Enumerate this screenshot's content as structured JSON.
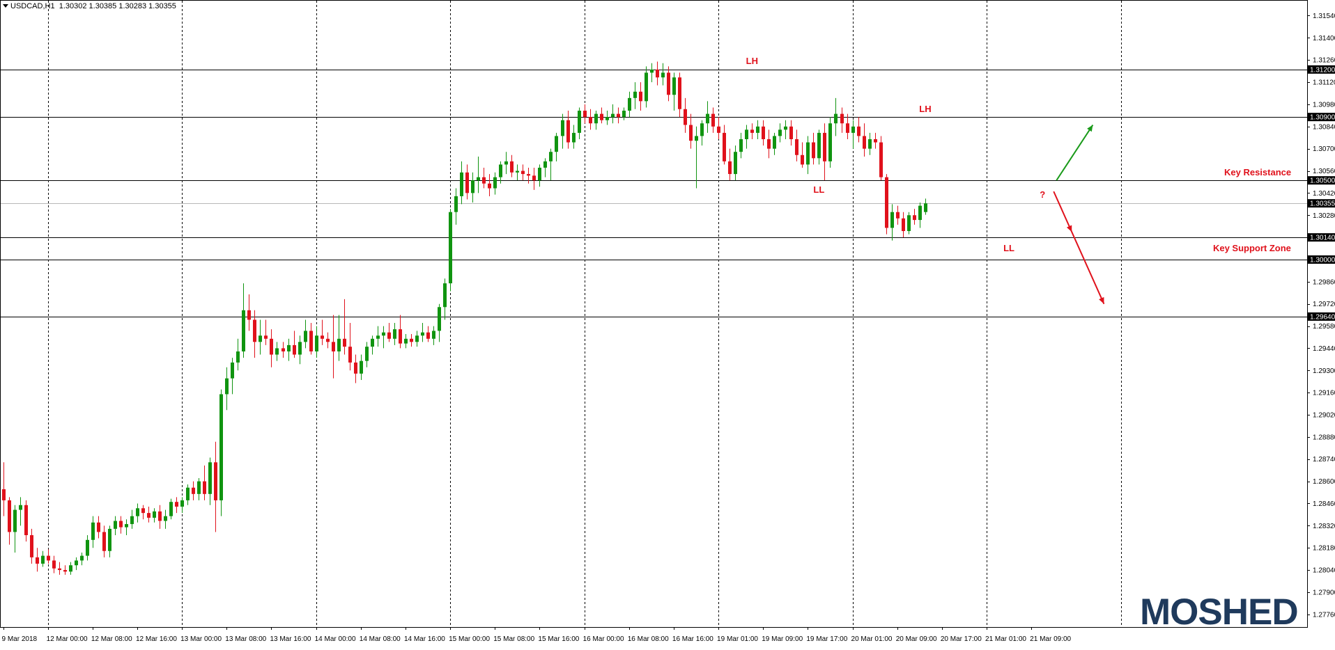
{
  "header": {
    "symbol": "USDCAD,H1",
    "ohlc": "1.30302 1.30385 1.30283 1.30355"
  },
  "logo": {
    "text": "MOSHED"
  },
  "chart_data": {
    "type": "candlestick",
    "symbol": "USDCAD",
    "timeframe": "H1",
    "ylim": [
      1.2768,
      1.3163
    ],
    "y_ticks": [
      "1.27760",
      "1.27900",
      "1.28040",
      "1.28180",
      "1.28320",
      "1.28460",
      "1.28600",
      "1.28740",
      "1.28880",
      "1.29020",
      "1.29160",
      "1.29300",
      "1.29440",
      "1.29580",
      "1.29720",
      "1.29860",
      "1.30000",
      "1.30140",
      "1.30280",
      "1.30420",
      "1.30560",
      "1.30700",
      "1.30840",
      "1.30980",
      "1.31120",
      "1.31260",
      "1.31400",
      "1.31540"
    ],
    "x_ticks": [
      "9 Mar 2018",
      "12 Mar 00:00",
      "12 Mar 08:00",
      "12 Mar 16:00",
      "13 Mar 00:00",
      "13 Mar 08:00",
      "13 Mar 16:00",
      "14 Mar 00:00",
      "14 Mar 08:00",
      "14 Mar 16:00",
      "15 Mar 00:00",
      "15 Mar 08:00",
      "15 Mar 16:00",
      "16 Mar 00:00",
      "16 Mar 08:00",
      "16 Mar 16:00",
      "19 Mar 01:00",
      "19 Mar 09:00",
      "19 Mar 17:00",
      "20 Mar 01:00",
      "20 Mar 09:00",
      "20 Mar 17:00",
      "21 Mar 01:00",
      "21 Mar 09:00"
    ],
    "x_tick_slots": [
      0,
      8,
      16,
      24,
      32,
      40,
      48,
      56,
      64,
      72,
      80,
      88,
      96,
      104,
      112,
      120,
      128,
      136,
      144,
      152,
      160,
      168,
      176,
      184
    ],
    "separator_slots": [
      8,
      32,
      56,
      80,
      104,
      128,
      152,
      176,
      200
    ],
    "levels": [
      {
        "value": "1.31200",
        "y": 1.312
      },
      {
        "value": "1.30900",
        "y": 1.309
      },
      {
        "value": "1.30500",
        "y": 1.305
      },
      {
        "value": "1.30140",
        "y": 1.3014
      },
      {
        "value": "1.30000",
        "y": 1.3
      },
      {
        "value": "1.29640",
        "y": 1.2964
      }
    ],
    "current_price": {
      "value": "1.30355",
      "y": 1.30355
    },
    "annotations": [
      {
        "text": "LH",
        "x": 134,
        "y": 1.3125
      },
      {
        "text": "LL",
        "x": 146,
        "y": 1.3044
      },
      {
        "text": "LH",
        "x": 165,
        "y": 1.3095
      },
      {
        "text": "LL",
        "x": 180,
        "y": 1.3007
      },
      {
        "text": "?",
        "x": 186,
        "y": 1.3041
      },
      {
        "text": "Key Resistance",
        "x": 224.5,
        "y": 1.3055
      },
      {
        "text": "Key Support Zone",
        "x": 223.5,
        "y": 1.3007
      }
    ],
    "projections": [
      {
        "direction": "up",
        "color": "#1a9a1a",
        "from": [
          188.5,
          1.305
        ],
        "to": [
          195,
          1.3085
        ]
      },
      {
        "direction": "down",
        "color": "#e0111b",
        "from": [
          188,
          1.3043
        ],
        "to": [
          197,
          1.2972
        ]
      }
    ],
    "series": [
      {
        "o": 1.2855,
        "h": 1.2872,
        "l": 1.2838,
        "c": 1.2848
      },
      {
        "o": 1.2848,
        "h": 1.285,
        "l": 1.282,
        "c": 1.2828
      },
      {
        "o": 1.2828,
        "h": 1.2845,
        "l": 1.2815,
        "c": 1.2842
      },
      {
        "o": 1.2842,
        "h": 1.285,
        "l": 1.2832,
        "c": 1.2845
      },
      {
        "o": 1.2845,
        "h": 1.2848,
        "l": 1.2822,
        "c": 1.2826
      },
      {
        "o": 1.2826,
        "h": 1.283,
        "l": 1.2808,
        "c": 1.2812
      },
      {
        "o": 1.2812,
        "h": 1.2818,
        "l": 1.2803,
        "c": 1.2808
      },
      {
        "o": 1.2808,
        "h": 1.2816,
        "l": 1.2806,
        "c": 1.2813
      },
      {
        "o": 1.2813,
        "h": 1.2817,
        "l": 1.2808,
        "c": 1.281
      },
      {
        "o": 1.281,
        "h": 1.2813,
        "l": 1.2802,
        "c": 1.2805
      },
      {
        "o": 1.2805,
        "h": 1.2809,
        "l": 1.2801,
        "c": 1.2804
      },
      {
        "o": 1.2804,
        "h": 1.2807,
        "l": 1.2801,
        "c": 1.2803
      },
      {
        "o": 1.2803,
        "h": 1.2809,
        "l": 1.2801,
        "c": 1.2807
      },
      {
        "o": 1.2807,
        "h": 1.2812,
        "l": 1.2804,
        "c": 1.281
      },
      {
        "o": 1.281,
        "h": 1.2815,
        "l": 1.2807,
        "c": 1.2813
      },
      {
        "o": 1.2813,
        "h": 1.2826,
        "l": 1.281,
        "c": 1.2823
      },
      {
        "o": 1.2823,
        "h": 1.2838,
        "l": 1.2818,
        "c": 1.2834
      },
      {
        "o": 1.2834,
        "h": 1.2838,
        "l": 1.2824,
        "c": 1.2828
      },
      {
        "o": 1.2828,
        "h": 1.2832,
        "l": 1.2812,
        "c": 1.2816
      },
      {
        "o": 1.2816,
        "h": 1.2832,
        "l": 1.2812,
        "c": 1.283
      },
      {
        "o": 1.283,
        "h": 1.2838,
        "l": 1.2826,
        "c": 1.2835
      },
      {
        "o": 1.2835,
        "h": 1.2838,
        "l": 1.2827,
        "c": 1.2831
      },
      {
        "o": 1.2831,
        "h": 1.2836,
        "l": 1.2826,
        "c": 1.2833
      },
      {
        "o": 1.2833,
        "h": 1.2842,
        "l": 1.283,
        "c": 1.2838
      },
      {
        "o": 1.2838,
        "h": 1.2846,
        "l": 1.2834,
        "c": 1.2843
      },
      {
        "o": 1.2843,
        "h": 1.2845,
        "l": 1.2836,
        "c": 1.284
      },
      {
        "o": 1.284,
        "h": 1.2844,
        "l": 1.2834,
        "c": 1.2837
      },
      {
        "o": 1.2837,
        "h": 1.2843,
        "l": 1.2834,
        "c": 1.2841
      },
      {
        "o": 1.2841,
        "h": 1.2845,
        "l": 1.283,
        "c": 1.2835
      },
      {
        "o": 1.2835,
        "h": 1.2842,
        "l": 1.283,
        "c": 1.2838
      },
      {
        "o": 1.2838,
        "h": 1.2849,
        "l": 1.2836,
        "c": 1.2847
      },
      {
        "o": 1.2847,
        "h": 1.285,
        "l": 1.284,
        "c": 1.2844
      },
      {
        "o": 1.2844,
        "h": 1.285,
        "l": 1.284,
        "c": 1.2848
      },
      {
        "o": 1.2848,
        "h": 1.2858,
        "l": 1.2845,
        "c": 1.2856
      },
      {
        "o": 1.2856,
        "h": 1.286,
        "l": 1.2848,
        "c": 1.2852
      },
      {
        "o": 1.2852,
        "h": 1.2862,
        "l": 1.2848,
        "c": 1.286
      },
      {
        "o": 1.286,
        "h": 1.287,
        "l": 1.2848,
        "c": 1.2852
      },
      {
        "o": 1.2852,
        "h": 1.2875,
        "l": 1.2845,
        "c": 1.2872
      },
      {
        "o": 1.2872,
        "h": 1.2885,
        "l": 1.2828,
        "c": 1.2848
      },
      {
        "o": 1.2848,
        "h": 1.2918,
        "l": 1.2838,
        "c": 1.2915
      },
      {
        "o": 1.2915,
        "h": 1.2932,
        "l": 1.2905,
        "c": 1.2925
      },
      {
        "o": 1.2925,
        "h": 1.2938,
        "l": 1.2915,
        "c": 1.2935
      },
      {
        "o": 1.2935,
        "h": 1.295,
        "l": 1.293,
        "c": 1.2942
      },
      {
        "o": 1.2942,
        "h": 1.2985,
        "l": 1.2938,
        "c": 1.2968
      },
      {
        "o": 1.2968,
        "h": 1.2978,
        "l": 1.2955,
        "c": 1.2962
      },
      {
        "o": 1.2962,
        "h": 1.2968,
        "l": 1.2938,
        "c": 1.2948
      },
      {
        "o": 1.2948,
        "h": 1.2962,
        "l": 1.294,
        "c": 1.2952
      },
      {
        "o": 1.2952,
        "h": 1.2962,
        "l": 1.2946,
        "c": 1.295
      },
      {
        "o": 1.295,
        "h": 1.2956,
        "l": 1.2932,
        "c": 1.294
      },
      {
        "o": 1.294,
        "h": 1.2948,
        "l": 1.2936,
        "c": 1.2944
      },
      {
        "o": 1.2944,
        "h": 1.2948,
        "l": 1.2938,
        "c": 1.2942
      },
      {
        "o": 1.2942,
        "h": 1.295,
        "l": 1.2936,
        "c": 1.2946
      },
      {
        "o": 1.2946,
        "h": 1.2955,
        "l": 1.2938,
        "c": 1.294
      },
      {
        "o": 1.294,
        "h": 1.2952,
        "l": 1.2934,
        "c": 1.2948
      },
      {
        "o": 1.2948,
        "h": 1.2962,
        "l": 1.2944,
        "c": 1.2955
      },
      {
        "o": 1.2955,
        "h": 1.296,
        "l": 1.294,
        "c": 1.2942
      },
      {
        "o": 1.2942,
        "h": 1.2958,
        "l": 1.2938,
        "c": 1.2952
      },
      {
        "o": 1.2952,
        "h": 1.2962,
        "l": 1.2946,
        "c": 1.295
      },
      {
        "o": 1.295,
        "h": 1.2954,
        "l": 1.2944,
        "c": 1.2948
      },
      {
        "o": 1.2948,
        "h": 1.2965,
        "l": 1.2925,
        "c": 1.2942
      },
      {
        "o": 1.2942,
        "h": 1.2965,
        "l": 1.2936,
        "c": 1.295
      },
      {
        "o": 1.295,
        "h": 1.2975,
        "l": 1.294,
        "c": 1.2945
      },
      {
        "o": 1.2945,
        "h": 1.296,
        "l": 1.293,
        "c": 1.2935
      },
      {
        "o": 1.2935,
        "h": 1.294,
        "l": 1.2922,
        "c": 1.2928
      },
      {
        "o": 1.2928,
        "h": 1.294,
        "l": 1.2924,
        "c": 1.2936
      },
      {
        "o": 1.2936,
        "h": 1.2948,
        "l": 1.2932,
        "c": 1.2945
      },
      {
        "o": 1.2945,
        "h": 1.2952,
        "l": 1.294,
        "c": 1.295
      },
      {
        "o": 1.295,
        "h": 1.2958,
        "l": 1.2945,
        "c": 1.2952
      },
      {
        "o": 1.2952,
        "h": 1.2958,
        "l": 1.2944,
        "c": 1.2954
      },
      {
        "o": 1.2954,
        "h": 1.296,
        "l": 1.2948,
        "c": 1.295
      },
      {
        "o": 1.295,
        "h": 1.296,
        "l": 1.2946,
        "c": 1.2956
      },
      {
        "o": 1.2956,
        "h": 1.2965,
        "l": 1.2944,
        "c": 1.2947
      },
      {
        "o": 1.2947,
        "h": 1.2953,
        "l": 1.2944,
        "c": 1.295
      },
      {
        "o": 1.295,
        "h": 1.2953,
        "l": 1.2945,
        "c": 1.2948
      },
      {
        "o": 1.2948,
        "h": 1.2955,
        "l": 1.2945,
        "c": 1.2952
      },
      {
        "o": 1.2952,
        "h": 1.296,
        "l": 1.2948,
        "c": 1.2954
      },
      {
        "o": 1.2954,
        "h": 1.2958,
        "l": 1.2948,
        "c": 1.295
      },
      {
        "o": 1.295,
        "h": 1.2958,
        "l": 1.2946,
        "c": 1.2955
      },
      {
        "o": 1.2955,
        "h": 1.2972,
        "l": 1.2948,
        "c": 1.297
      },
      {
        "o": 1.297,
        "h": 1.2988,
        "l": 1.2962,
        "c": 1.2985
      },
      {
        "o": 1.2985,
        "h": 1.3032,
        "l": 1.298,
        "c": 1.303
      },
      {
        "o": 1.303,
        "h": 1.3045,
        "l": 1.3022,
        "c": 1.304
      },
      {
        "o": 1.304,
        "h": 1.3062,
        "l": 1.3035,
        "c": 1.3055
      },
      {
        "o": 1.3055,
        "h": 1.306,
        "l": 1.3038,
        "c": 1.3042
      },
      {
        "o": 1.3042,
        "h": 1.3055,
        "l": 1.3036,
        "c": 1.305
      },
      {
        "o": 1.305,
        "h": 1.3065,
        "l": 1.3042,
        "c": 1.3052
      },
      {
        "o": 1.3052,
        "h": 1.3058,
        "l": 1.3045,
        "c": 1.3048
      },
      {
        "o": 1.3048,
        "h": 1.3054,
        "l": 1.304,
        "c": 1.3045
      },
      {
        "o": 1.3045,
        "h": 1.3055,
        "l": 1.3041,
        "c": 1.3052
      },
      {
        "o": 1.3052,
        "h": 1.3062,
        "l": 1.3048,
        "c": 1.306
      },
      {
        "o": 1.306,
        "h": 1.3068,
        "l": 1.3054,
        "c": 1.3062
      },
      {
        "o": 1.3062,
        "h": 1.3066,
        "l": 1.3052,
        "c": 1.3055
      },
      {
        "o": 1.3055,
        "h": 1.306,
        "l": 1.305,
        "c": 1.3056
      },
      {
        "o": 1.3056,
        "h": 1.306,
        "l": 1.305,
        "c": 1.3054
      },
      {
        "o": 1.3054,
        "h": 1.3058,
        "l": 1.3048,
        "c": 1.3053
      },
      {
        "o": 1.3053,
        "h": 1.3058,
        "l": 1.3044,
        "c": 1.305
      },
      {
        "o": 1.305,
        "h": 1.306,
        "l": 1.3046,
        "c": 1.3058
      },
      {
        "o": 1.3058,
        "h": 1.3064,
        "l": 1.3052,
        "c": 1.3062
      },
      {
        "o": 1.3062,
        "h": 1.307,
        "l": 1.305,
        "c": 1.3068
      },
      {
        "o": 1.3068,
        "h": 1.308,
        "l": 1.3062,
        "c": 1.3078
      },
      {
        "o": 1.3078,
        "h": 1.3092,
        "l": 1.307,
        "c": 1.3088
      },
      {
        "o": 1.3088,
        "h": 1.3094,
        "l": 1.307,
        "c": 1.3074
      },
      {
        "o": 1.3074,
        "h": 1.3085,
        "l": 1.307,
        "c": 1.308
      },
      {
        "o": 1.308,
        "h": 1.3096,
        "l": 1.3076,
        "c": 1.3094
      },
      {
        "o": 1.3094,
        "h": 1.3098,
        "l": 1.3086,
        "c": 1.309
      },
      {
        "o": 1.309,
        "h": 1.3095,
        "l": 1.3082,
        "c": 1.3086
      },
      {
        "o": 1.3086,
        "h": 1.3094,
        "l": 1.3082,
        "c": 1.3092
      },
      {
        "o": 1.3092,
        "h": 1.3096,
        "l": 1.3086,
        "c": 1.3088
      },
      {
        "o": 1.3088,
        "h": 1.3094,
        "l": 1.3085,
        "c": 1.309
      },
      {
        "o": 1.309,
        "h": 1.3098,
        "l": 1.3086,
        "c": 1.3092
      },
      {
        "o": 1.3092,
        "h": 1.3096,
        "l": 1.3086,
        "c": 1.309
      },
      {
        "o": 1.309,
        "h": 1.3096,
        "l": 1.3088,
        "c": 1.3094
      },
      {
        "o": 1.3094,
        "h": 1.3106,
        "l": 1.309,
        "c": 1.3102
      },
      {
        "o": 1.3102,
        "h": 1.3112,
        "l": 1.3095,
        "c": 1.3106
      },
      {
        "o": 1.3106,
        "h": 1.3112,
        "l": 1.3094,
        "c": 1.31
      },
      {
        "o": 1.31,
        "h": 1.3122,
        "l": 1.3096,
        "c": 1.3118
      },
      {
        "o": 1.3118,
        "h": 1.3124,
        "l": 1.3112,
        "c": 1.312
      },
      {
        "o": 1.312,
        "h": 1.3125,
        "l": 1.311,
        "c": 1.3115
      },
      {
        "o": 1.3115,
        "h": 1.3124,
        "l": 1.311,
        "c": 1.3118
      },
      {
        "o": 1.3118,
        "h": 1.3122,
        "l": 1.31,
        "c": 1.3104
      },
      {
        "o": 1.3104,
        "h": 1.3118,
        "l": 1.3094,
        "c": 1.3115
      },
      {
        "o": 1.3115,
        "h": 1.3118,
        "l": 1.309,
        "c": 1.3095
      },
      {
        "o": 1.3095,
        "h": 1.3102,
        "l": 1.308,
        "c": 1.3085
      },
      {
        "o": 1.3085,
        "h": 1.3092,
        "l": 1.307,
        "c": 1.3075
      },
      {
        "o": 1.3075,
        "h": 1.3084,
        "l": 1.3045,
        "c": 1.3078
      },
      {
        "o": 1.3078,
        "h": 1.3088,
        "l": 1.3072,
        "c": 1.3086
      },
      {
        "o": 1.3086,
        "h": 1.31,
        "l": 1.308,
        "c": 1.3092
      },
      {
        "o": 1.3092,
        "h": 1.3096,
        "l": 1.308,
        "c": 1.3084
      },
      {
        "o": 1.3084,
        "h": 1.309,
        "l": 1.3076,
        "c": 1.308
      },
      {
        "o": 1.308,
        "h": 1.3085,
        "l": 1.306,
        "c": 1.3062
      },
      {
        "o": 1.3062,
        "h": 1.307,
        "l": 1.305,
        "c": 1.3054
      },
      {
        "o": 1.3054,
        "h": 1.3072,
        "l": 1.305,
        "c": 1.3068
      },
      {
        "o": 1.3068,
        "h": 1.308,
        "l": 1.3064,
        "c": 1.3076
      },
      {
        "o": 1.3076,
        "h": 1.3085,
        "l": 1.307,
        "c": 1.3082
      },
      {
        "o": 1.3082,
        "h": 1.3086,
        "l": 1.3076,
        "c": 1.308
      },
      {
        "o": 1.308,
        "h": 1.3088,
        "l": 1.3076,
        "c": 1.3084
      },
      {
        "o": 1.3084,
        "h": 1.3088,
        "l": 1.3072,
        "c": 1.3076
      },
      {
        "o": 1.3076,
        "h": 1.3082,
        "l": 1.3064,
        "c": 1.307
      },
      {
        "o": 1.307,
        "h": 1.308,
        "l": 1.3066,
        "c": 1.3078
      },
      {
        "o": 1.3078,
        "h": 1.3086,
        "l": 1.3074,
        "c": 1.3082
      },
      {
        "o": 1.3082,
        "h": 1.3088,
        "l": 1.3076,
        "c": 1.3084
      },
      {
        "o": 1.3084,
        "h": 1.3088,
        "l": 1.3072,
        "c": 1.3076
      },
      {
        "o": 1.3076,
        "h": 1.3082,
        "l": 1.3062,
        "c": 1.3066
      },
      {
        "o": 1.3066,
        "h": 1.3074,
        "l": 1.3058,
        "c": 1.306
      },
      {
        "o": 1.306,
        "h": 1.3078,
        "l": 1.3054,
        "c": 1.3074
      },
      {
        "o": 1.3074,
        "h": 1.308,
        "l": 1.306,
        "c": 1.3064
      },
      {
        "o": 1.3064,
        "h": 1.3082,
        "l": 1.306,
        "c": 1.308
      },
      {
        "o": 1.308,
        "h": 1.3086,
        "l": 1.305,
        "c": 1.3062
      },
      {
        "o": 1.3062,
        "h": 1.309,
        "l": 1.3058,
        "c": 1.3086
      },
      {
        "o": 1.3086,
        "h": 1.3102,
        "l": 1.3078,
        "c": 1.3092
      },
      {
        "o": 1.3092,
        "h": 1.3096,
        "l": 1.308,
        "c": 1.3086
      },
      {
        "o": 1.3086,
        "h": 1.3092,
        "l": 1.3076,
        "c": 1.308
      },
      {
        "o": 1.308,
        "h": 1.3088,
        "l": 1.307,
        "c": 1.3084
      },
      {
        "o": 1.3084,
        "h": 1.309,
        "l": 1.3074,
        "c": 1.3078
      },
      {
        "o": 1.3078,
        "h": 1.3086,
        "l": 1.3065,
        "c": 1.307
      },
      {
        "o": 1.307,
        "h": 1.308,
        "l": 1.3066,
        "c": 1.3076
      },
      {
        "o": 1.3076,
        "h": 1.308,
        "l": 1.307,
        "c": 1.3074
      },
      {
        "o": 1.3074,
        "h": 1.3078,
        "l": 1.305,
        "c": 1.3052
      },
      {
        "o": 1.3052,
        "h": 1.3054,
        "l": 1.3016,
        "c": 1.302
      },
      {
        "o": 1.302,
        "h": 1.3035,
        "l": 1.3012,
        "c": 1.303
      },
      {
        "o": 1.303,
        "h": 1.3034,
        "l": 1.3022,
        "c": 1.3026
      },
      {
        "o": 1.3026,
        "h": 1.303,
        "l": 1.3014,
        "c": 1.3018
      },
      {
        "o": 1.3018,
        "h": 1.303,
        "l": 1.3016,
        "c": 1.3028
      },
      {
        "o": 1.3028,
        "h": 1.3032,
        "l": 1.3022,
        "c": 1.3025
      },
      {
        "o": 1.3025,
        "h": 1.3036,
        "l": 1.302,
        "c": 1.3034
      },
      {
        "o": 1.303,
        "h": 1.30385,
        "l": 1.30283,
        "c": 1.30355
      }
    ]
  }
}
